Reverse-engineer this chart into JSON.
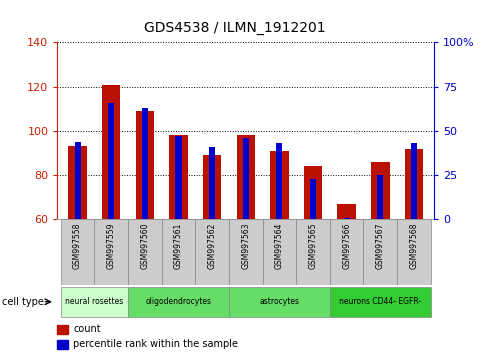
{
  "title": "GDS4538 / ILMN_1912201",
  "samples": [
    "GSM997558",
    "GSM997559",
    "GSM997560",
    "GSM997561",
    "GSM997562",
    "GSM997563",
    "GSM997564",
    "GSM997565",
    "GSM997566",
    "GSM997567",
    "GSM997568"
  ],
  "count_values": [
    93,
    121,
    109,
    98,
    89,
    98,
    91,
    84,
    67,
    86,
    92
  ],
  "percentile_values": [
    44,
    66,
    63,
    47,
    41,
    46,
    43,
    23,
    1,
    25,
    43
  ],
  "ylim_left": [
    60,
    140
  ],
  "ylim_right": [
    0,
    100
  ],
  "yticks_left": [
    60,
    80,
    100,
    120,
    140
  ],
  "yticks_right": [
    0,
    25,
    50,
    75,
    100
  ],
  "bar_color_red": "#bb1100",
  "bar_color_blue": "#0000cc",
  "bar_width": 0.55,
  "blue_bar_width": 0.18,
  "left_axis_color": "#cc2200",
  "right_axis_color": "#0000cc",
  "grid_color": "#000000",
  "sample_row_color": "#cccccc",
  "cell_types": [
    {
      "label": "neural rosettes",
      "start": 0,
      "end": 2,
      "color": "#ccffcc"
    },
    {
      "label": "oligodendrocytes",
      "start": 2,
      "end": 5,
      "color": "#66dd66"
    },
    {
      "label": "astrocytes",
      "start": 5,
      "end": 8,
      "color": "#66dd66"
    },
    {
      "label": "neurons CD44- EGFR-",
      "start": 8,
      "end": 11,
      "color": "#33cc33"
    }
  ]
}
